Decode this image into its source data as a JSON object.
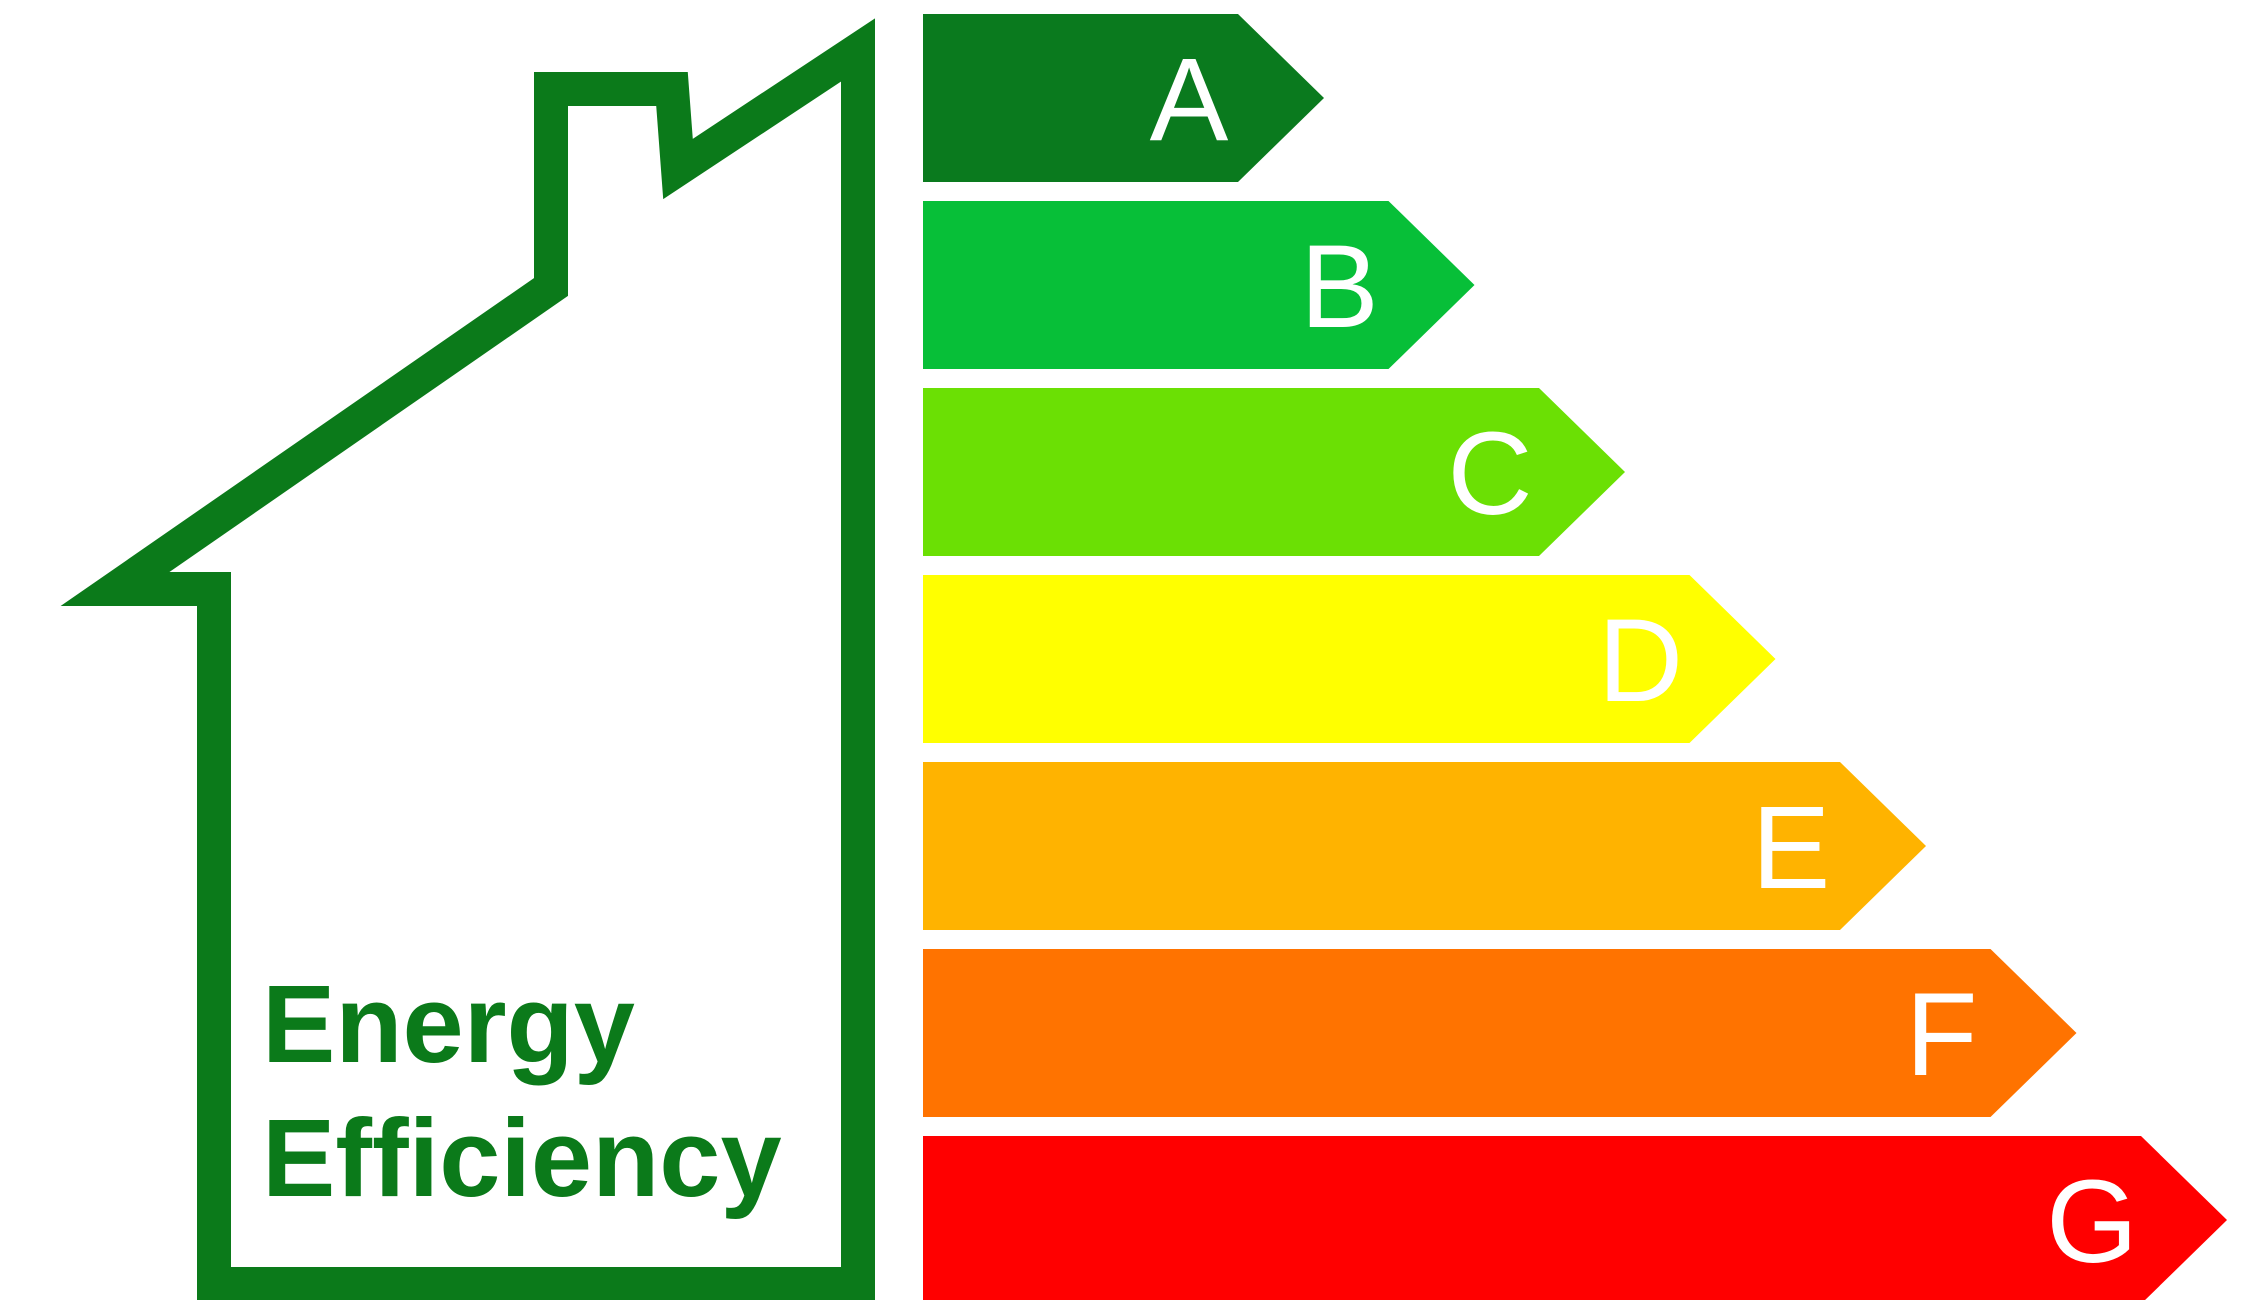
{
  "house": {
    "lines": [
      "Energy",
      "Efficiency"
    ],
    "color": "#0b7a1a"
  },
  "bands": [
    {
      "label": "A",
      "color": "#0a7a1e"
    },
    {
      "label": "B",
      "color": "#07bf38"
    },
    {
      "label": "C",
      "color": "#6be004"
    },
    {
      "label": "D",
      "color": "#ffff00"
    },
    {
      "label": "E",
      "color": "#ffb300"
    },
    {
      "label": "F",
      "color": "#ff7300"
    },
    {
      "label": "G",
      "color": "#ff0000"
    }
  ]
}
